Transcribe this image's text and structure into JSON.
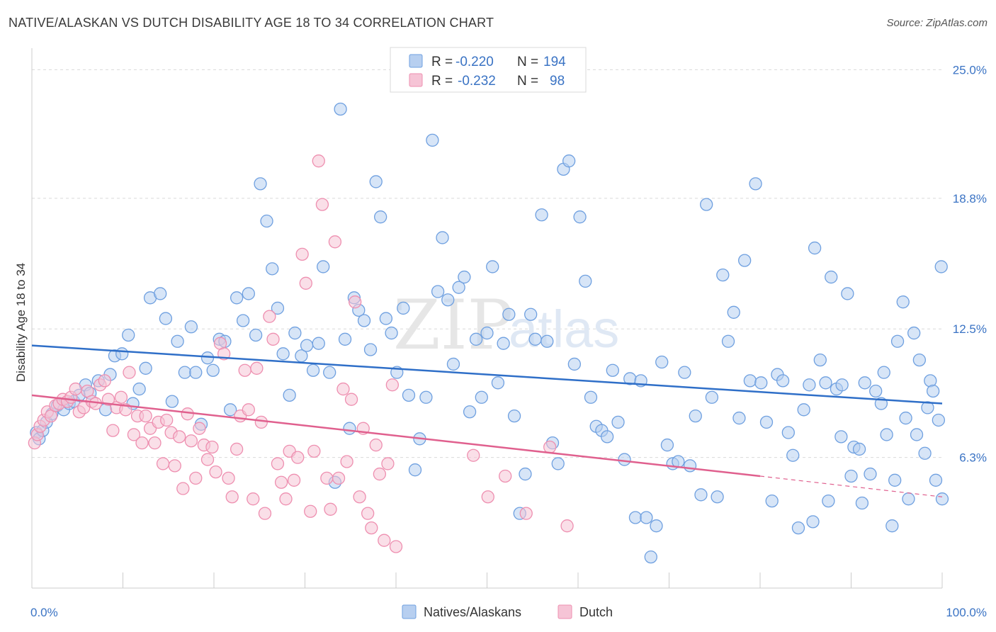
{
  "title": "NATIVE/ALASKAN VS DUTCH DISABILITY AGE 18 TO 34 CORRELATION CHART",
  "source": "Source: ZipAtlas.com",
  "watermark": {
    "zip": "ZIP",
    "atlas": "atlas"
  },
  "legend": {
    "r_label": "R =",
    "n_label": "N =",
    "rows": [
      {
        "r": "-0.220",
        "n": "194"
      },
      {
        "r": "-0.232",
        "n": "98"
      }
    ]
  },
  "bottom_legend": [
    "Natives/Alaskans",
    "Dutch"
  ],
  "colors": {
    "blue": "#6fa0e0",
    "blue_fill": "#b7cff0",
    "blue_line": "#2f6fc8",
    "pink": "#ee8fb0",
    "pink_fill": "#f6c4d6",
    "pink_line": "#e0608e"
  },
  "chart_data": {
    "type": "scatter",
    "title": "NATIVE/ALASKAN VS DUTCH DISABILITY AGE 18 TO 34 CORRELATION CHART",
    "xlabel": "",
    "ylabel": "Disability Age 18 to 34",
    "xlim": [
      0,
      100
    ],
    "ylim": [
      0,
      25.8
    ],
    "x_tick_labels": [
      "0.0%",
      "100.0%"
    ],
    "y_ticks": [
      6.3,
      12.5,
      18.8,
      25.0
    ],
    "y_tick_labels": [
      "6.3%",
      "12.5%",
      "18.8%",
      "25.0%"
    ],
    "grid": true,
    "legend_position": "top-center",
    "series": [
      {
        "name": "Natives/Alaskans",
        "r": -0.22,
        "n": 194,
        "trend": {
          "x": [
            0,
            100
          ],
          "y": [
            11.7,
            8.9
          ]
        },
        "points": [
          [
            0.5,
            7.5
          ],
          [
            0.8,
            7.2
          ],
          [
            1.2,
            7.6
          ],
          [
            1.6,
            8.0
          ],
          [
            2.2,
            8.4
          ],
          [
            2.8,
            8.8
          ],
          [
            3.5,
            8.6
          ],
          [
            4.1,
            8.9
          ],
          [
            4.6,
            9.0
          ],
          [
            5.2,
            9.3
          ],
          [
            5.9,
            9.8
          ],
          [
            6.4,
            9.4
          ],
          [
            7.3,
            10.0
          ],
          [
            8.1,
            8.6
          ],
          [
            8.6,
            10.3
          ],
          [
            9.1,
            11.2
          ],
          [
            9.9,
            11.3
          ],
          [
            10.6,
            12.2
          ],
          [
            11.1,
            8.9
          ],
          [
            11.8,
            9.6
          ],
          [
            12.5,
            10.6
          ],
          [
            13.0,
            14.0
          ],
          [
            14.1,
            14.2
          ],
          [
            14.7,
            13.0
          ],
          [
            15.4,
            9.0
          ],
          [
            16.0,
            11.9
          ],
          [
            16.8,
            10.4
          ],
          [
            17.5,
            12.6
          ],
          [
            18.0,
            10.4
          ],
          [
            18.6,
            7.9
          ],
          [
            19.3,
            11.1
          ],
          [
            19.9,
            10.5
          ],
          [
            20.6,
            12.0
          ],
          [
            21.2,
            11.9
          ],
          [
            21.8,
            8.6
          ],
          [
            22.5,
            14.0
          ],
          [
            23.2,
            12.9
          ],
          [
            23.8,
            14.2
          ],
          [
            24.6,
            12.2
          ],
          [
            25.1,
            19.5
          ],
          [
            25.8,
            17.7
          ],
          [
            26.4,
            15.4
          ],
          [
            27.0,
            13.5
          ],
          [
            27.6,
            11.3
          ],
          [
            28.3,
            9.3
          ],
          [
            28.9,
            12.3
          ],
          [
            29.6,
            11.2
          ],
          [
            30.2,
            11.7
          ],
          [
            30.9,
            10.5
          ],
          [
            31.5,
            11.8
          ],
          [
            32.0,
            15.5
          ],
          [
            32.7,
            10.4
          ],
          [
            33.3,
            5.1
          ],
          [
            33.9,
            23.1
          ],
          [
            34.4,
            12.0
          ],
          [
            34.9,
            7.7
          ],
          [
            35.4,
            14.0
          ],
          [
            35.9,
            13.4
          ],
          [
            36.5,
            12.9
          ],
          [
            37.2,
            11.5
          ],
          [
            37.8,
            19.6
          ],
          [
            38.3,
            17.9
          ],
          [
            38.9,
            13.0
          ],
          [
            39.5,
            12.3
          ],
          [
            40.1,
            10.4
          ],
          [
            40.8,
            13.5
          ],
          [
            41.4,
            9.3
          ],
          [
            42.1,
            5.7
          ],
          [
            42.6,
            7.2
          ],
          [
            43.3,
            9.2
          ],
          [
            44.0,
            21.6
          ],
          [
            44.6,
            14.3
          ],
          [
            45.1,
            16.9
          ],
          [
            45.7,
            13.9
          ],
          [
            46.3,
            10.8
          ],
          [
            46.9,
            14.5
          ],
          [
            47.5,
            15.0
          ],
          [
            48.1,
            8.5
          ],
          [
            48.8,
            12.0
          ],
          [
            49.4,
            9.2
          ],
          [
            50.0,
            12.3
          ],
          [
            50.6,
            15.5
          ],
          [
            51.2,
            9.9
          ],
          [
            51.8,
            11.8
          ],
          [
            52.4,
            13.2
          ],
          [
            53.0,
            8.3
          ],
          [
            53.6,
            3.6
          ],
          [
            54.2,
            5.5
          ],
          [
            54.8,
            13.2
          ],
          [
            55.3,
            12.0
          ],
          [
            56.0,
            18.0
          ],
          [
            56.6,
            11.9
          ],
          [
            57.2,
            7.0
          ],
          [
            57.8,
            6.0
          ],
          [
            58.4,
            20.2
          ],
          [
            59.0,
            20.6
          ],
          [
            59.6,
            10.8
          ],
          [
            60.2,
            17.9
          ],
          [
            60.8,
            14.8
          ],
          [
            61.4,
            9.2
          ],
          [
            62.0,
            7.8
          ],
          [
            62.6,
            7.6
          ],
          [
            63.2,
            7.3
          ],
          [
            63.8,
            10.5
          ],
          [
            64.4,
            8.0
          ],
          [
            65.1,
            6.2
          ],
          [
            65.7,
            10.1
          ],
          [
            66.3,
            3.4
          ],
          [
            66.9,
            10.0
          ],
          [
            67.5,
            3.4
          ],
          [
            68.0,
            1.5
          ],
          [
            68.6,
            3.0
          ],
          [
            69.2,
            10.9
          ],
          [
            69.8,
            6.9
          ],
          [
            70.4,
            6.0
          ],
          [
            71.0,
            6.1
          ],
          [
            71.7,
            10.4
          ],
          [
            72.3,
            5.9
          ],
          [
            72.9,
            8.3
          ],
          [
            73.5,
            4.5
          ],
          [
            74.1,
            18.5
          ],
          [
            74.7,
            9.2
          ],
          [
            75.3,
            4.4
          ],
          [
            75.9,
            15.1
          ],
          [
            76.5,
            11.9
          ],
          [
            77.1,
            13.3
          ],
          [
            77.7,
            8.2
          ],
          [
            78.3,
            15.8
          ],
          [
            78.9,
            10.0
          ],
          [
            79.5,
            19.5
          ],
          [
            80.1,
            9.9
          ],
          [
            80.7,
            8.0
          ],
          [
            81.3,
            4.2
          ],
          [
            81.9,
            10.3
          ],
          [
            82.5,
            10.0
          ],
          [
            83.1,
            7.5
          ],
          [
            83.6,
            6.4
          ],
          [
            84.2,
            2.9
          ],
          [
            84.8,
            8.6
          ],
          [
            85.4,
            9.8
          ],
          [
            86.0,
            16.4
          ],
          [
            86.6,
            11.0
          ],
          [
            87.2,
            9.9
          ],
          [
            87.8,
            15.0
          ],
          [
            88.4,
            9.6
          ],
          [
            89.0,
            9.8
          ],
          [
            89.6,
            14.2
          ],
          [
            90.3,
            6.8
          ],
          [
            90.9,
            6.7
          ],
          [
            91.5,
            9.9
          ],
          [
            92.1,
            5.5
          ],
          [
            92.7,
            9.5
          ],
          [
            93.3,
            8.9
          ],
          [
            93.9,
            7.4
          ],
          [
            94.5,
            3.0
          ],
          [
            95.1,
            11.9
          ],
          [
            95.7,
            13.8
          ],
          [
            96.3,
            4.3
          ],
          [
            96.9,
            12.3
          ],
          [
            97.5,
            11.0
          ],
          [
            98.1,
            6.5
          ],
          [
            98.7,
            10.0
          ],
          [
            99.3,
            5.2
          ],
          [
            99.9,
            15.5
          ],
          [
            100.0,
            4.3
          ],
          [
            85.8,
            3.2
          ],
          [
            87.5,
            4.2
          ],
          [
            88.9,
            7.3
          ],
          [
            90.0,
            5.4
          ],
          [
            91.2,
            4.1
          ],
          [
            93.6,
            10.4
          ],
          [
            94.8,
            5.2
          ],
          [
            96.0,
            8.2
          ],
          [
            97.2,
            7.4
          ],
          [
            98.4,
            8.7
          ],
          [
            99.0,
            9.5
          ],
          [
            99.6,
            8.1
          ]
        ]
      },
      {
        "name": "Dutch",
        "r": -0.232,
        "n": 98,
        "trend": {
          "x": [
            0,
            80
          ],
          "y": [
            9.3,
            5.4
          ]
        },
        "trend_dashed": {
          "x": [
            80,
            100
          ],
          "y": [
            5.4,
            4.4
          ]
        },
        "points": [
          [
            0.3,
            7.0
          ],
          [
            0.6,
            7.4
          ],
          [
            0.9,
            7.8
          ],
          [
            1.3,
            8.1
          ],
          [
            1.7,
            8.5
          ],
          [
            2.1,
            8.3
          ],
          [
            2.6,
            8.8
          ],
          [
            3.0,
            8.9
          ],
          [
            3.4,
            9.1
          ],
          [
            3.9,
            9.0
          ],
          [
            4.3,
            9.2
          ],
          [
            4.8,
            9.6
          ],
          [
            5.2,
            8.5
          ],
          [
            5.7,
            8.7
          ],
          [
            6.1,
            9.5
          ],
          [
            6.6,
            9.0
          ],
          [
            7.0,
            8.9
          ],
          [
            7.5,
            9.8
          ],
          [
            8.0,
            10.0
          ],
          [
            8.4,
            9.1
          ],
          [
            8.9,
            7.6
          ],
          [
            9.3,
            8.7
          ],
          [
            9.8,
            9.2
          ],
          [
            10.3,
            8.6
          ],
          [
            10.7,
            10.4
          ],
          [
            11.2,
            7.4
          ],
          [
            11.6,
            8.3
          ],
          [
            12.1,
            7.0
          ],
          [
            12.5,
            8.3
          ],
          [
            13.0,
            7.7
          ],
          [
            13.5,
            7.0
          ],
          [
            13.9,
            8.0
          ],
          [
            14.4,
            6.0
          ],
          [
            14.8,
            8.1
          ],
          [
            15.3,
            7.5
          ],
          [
            15.7,
            5.9
          ],
          [
            16.2,
            7.3
          ],
          [
            16.6,
            4.8
          ],
          [
            17.1,
            8.4
          ],
          [
            17.5,
            7.1
          ],
          [
            18.0,
            5.3
          ],
          [
            18.4,
            7.7
          ],
          [
            18.9,
            6.9
          ],
          [
            19.3,
            6.2
          ],
          [
            19.8,
            6.8
          ],
          [
            20.2,
            5.6
          ],
          [
            20.7,
            11.8
          ],
          [
            21.1,
            11.3
          ],
          [
            21.6,
            5.3
          ],
          [
            22.0,
            4.4
          ],
          [
            22.5,
            6.7
          ],
          [
            22.9,
            8.3
          ],
          [
            23.4,
            10.5
          ],
          [
            23.8,
            8.6
          ],
          [
            24.3,
            4.3
          ],
          [
            24.7,
            10.6
          ],
          [
            25.2,
            8.0
          ],
          [
            25.6,
            3.6
          ],
          [
            26.1,
            13.1
          ],
          [
            26.5,
            12.0
          ],
          [
            27.0,
            6.0
          ],
          [
            27.4,
            5.1
          ],
          [
            27.9,
            4.3
          ],
          [
            28.3,
            6.6
          ],
          [
            28.8,
            5.2
          ],
          [
            29.2,
            6.3
          ],
          [
            29.7,
            16.1
          ],
          [
            30.1,
            14.7
          ],
          [
            30.6,
            3.7
          ],
          [
            31.0,
            6.6
          ],
          [
            31.5,
            20.6
          ],
          [
            31.9,
            18.5
          ],
          [
            32.4,
            5.3
          ],
          [
            32.8,
            3.8
          ],
          [
            33.3,
            16.7
          ],
          [
            33.7,
            5.3
          ],
          [
            34.2,
            9.6
          ],
          [
            34.6,
            6.1
          ],
          [
            35.1,
            9.1
          ],
          [
            35.5,
            13.8
          ],
          [
            36.0,
            4.4
          ],
          [
            36.4,
            7.7
          ],
          [
            36.9,
            3.6
          ],
          [
            37.3,
            2.9
          ],
          [
            37.8,
            6.9
          ],
          [
            38.2,
            5.5
          ],
          [
            38.7,
            2.3
          ],
          [
            39.1,
            6.0
          ],
          [
            39.6,
            9.8
          ],
          [
            40.0,
            2.0
          ],
          [
            48.5,
            6.4
          ],
          [
            50.1,
            4.4
          ],
          [
            52.0,
            5.4
          ],
          [
            54.3,
            3.6
          ],
          [
            56.9,
            6.8
          ],
          [
            58.8,
            3.0
          ]
        ]
      }
    ]
  }
}
